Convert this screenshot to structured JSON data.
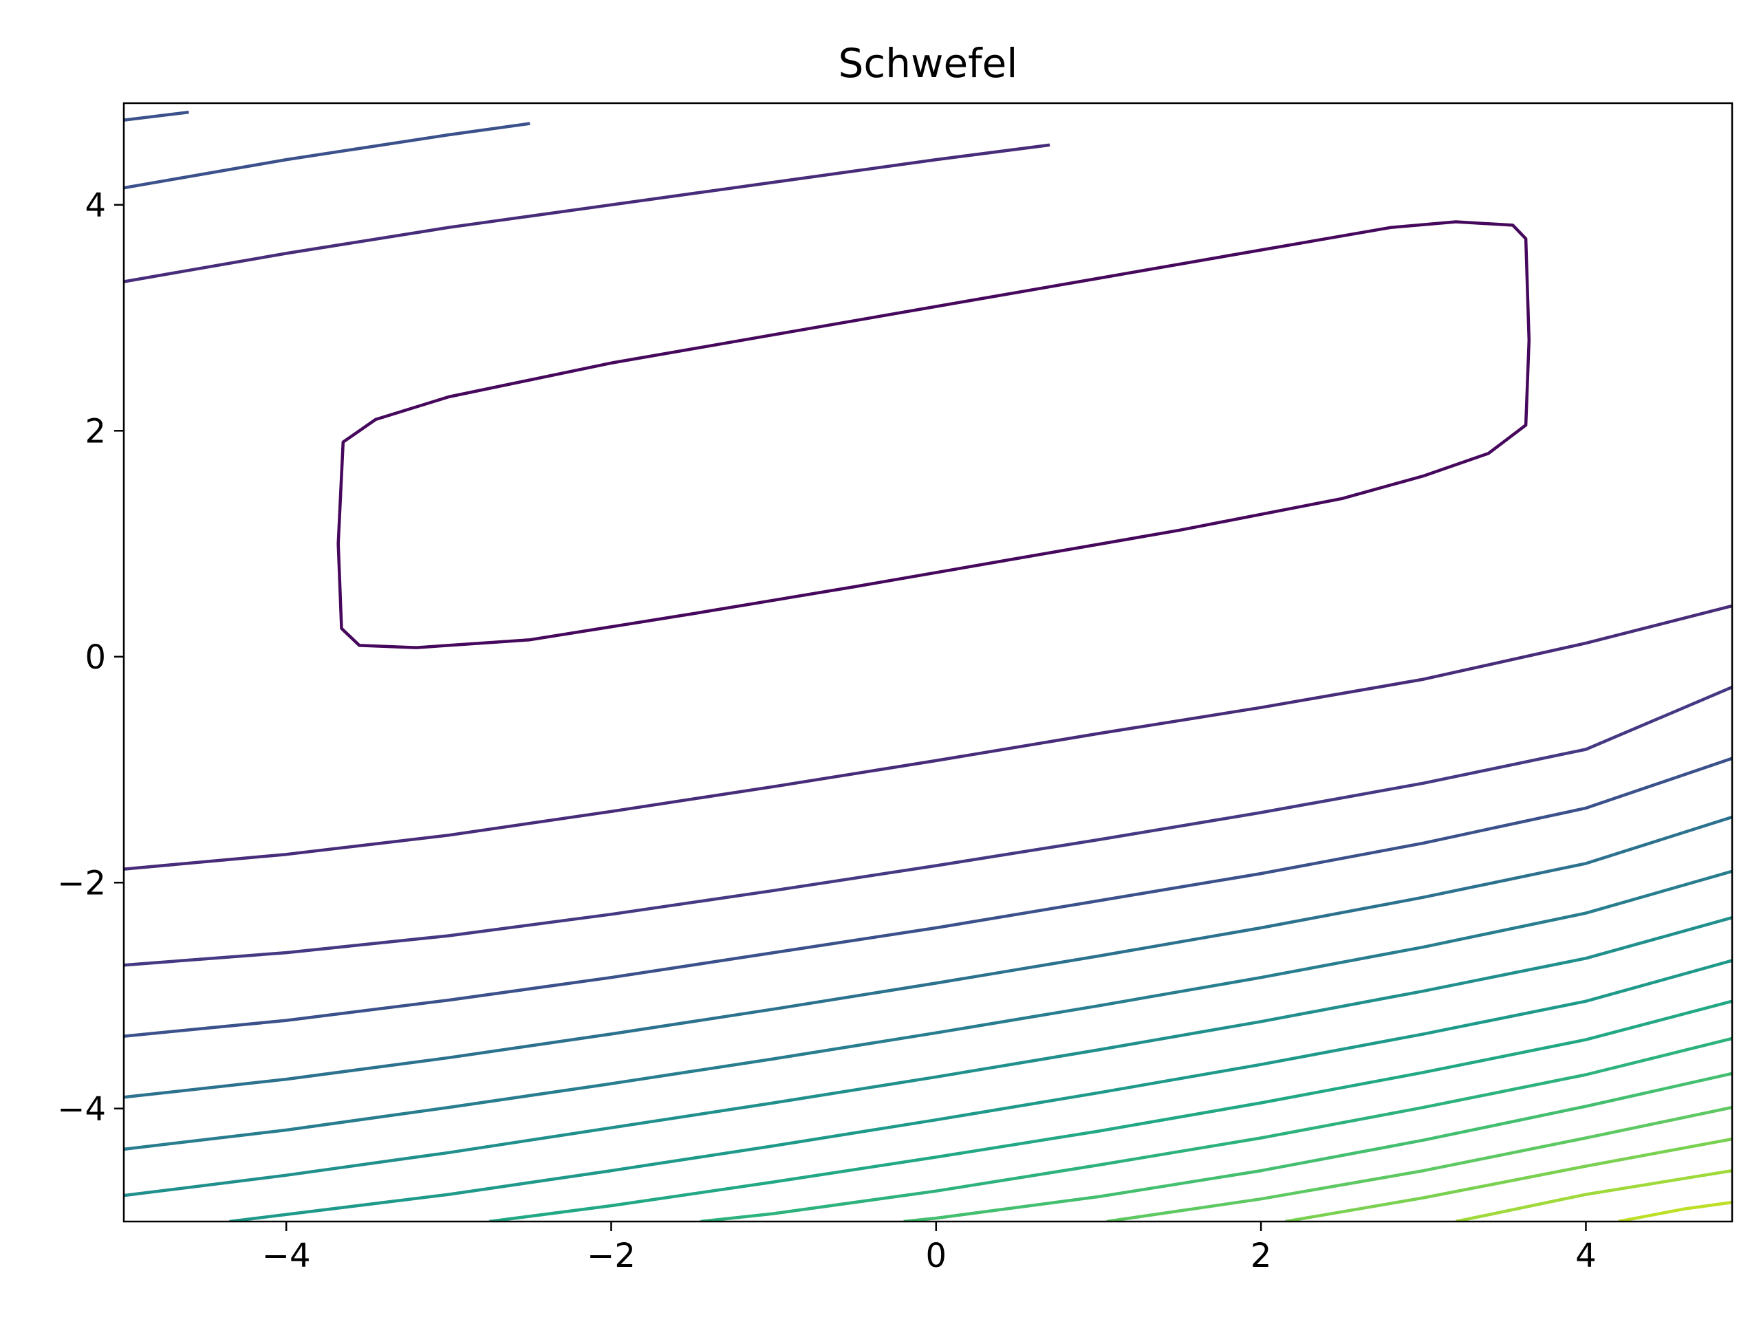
{
  "chart_data": {
    "type": "contour",
    "title": "Schwefel",
    "xlabel": "",
    "ylabel": "",
    "xlim": [
      -5,
      4.9
    ],
    "ylim": [
      -5,
      4.9
    ],
    "x_ticks": [
      -4,
      -2,
      0,
      2,
      4
    ],
    "y_ticks": [
      -4,
      -2,
      0,
      2,
      4
    ],
    "x_tick_labels": [
      "−4",
      "−2",
      "0",
      "2",
      "4"
    ],
    "y_tick_labels": [
      "−4",
      "−2",
      "0",
      "2",
      "4"
    ],
    "grid": false,
    "legend": "none",
    "colormap": "viridis",
    "contours": [
      {
        "level": 1,
        "color": "#46085c",
        "closed": true,
        "points": [
          [
            -3.55,
            0.1
          ],
          [
            -3.2,
            0.08
          ],
          [
            -2.5,
            0.15
          ],
          [
            -1.5,
            0.38
          ],
          [
            -0.5,
            0.62
          ],
          [
            0.5,
            0.87
          ],
          [
            1.5,
            1.12
          ],
          [
            2.5,
            1.4
          ],
          [
            3.0,
            1.6
          ],
          [
            3.4,
            1.8
          ],
          [
            3.63,
            2.05
          ],
          [
            3.65,
            2.8
          ],
          [
            3.63,
            3.7
          ],
          [
            3.55,
            3.82
          ],
          [
            3.2,
            3.85
          ],
          [
            2.8,
            3.8
          ],
          [
            2.0,
            3.6
          ],
          [
            1.0,
            3.35
          ],
          [
            0.0,
            3.1
          ],
          [
            -1.0,
            2.85
          ],
          [
            -2.0,
            2.6
          ],
          [
            -3.0,
            2.3
          ],
          [
            -3.45,
            2.1
          ],
          [
            -3.65,
            1.9
          ],
          [
            -3.68,
            1.0
          ],
          [
            -3.66,
            0.25
          ],
          [
            -3.55,
            0.1
          ]
        ]
      },
      {
        "level": 2,
        "color": "#472c7a",
        "closed": false,
        "points": [
          [
            -5.0,
            -1.88
          ],
          [
            -4,
            -1.75
          ],
          [
            -3,
            -1.58
          ],
          [
            -2,
            -1.37
          ],
          [
            -1,
            -1.15
          ],
          [
            0,
            -0.92
          ],
          [
            1,
            -0.68
          ],
          [
            2,
            -0.45
          ],
          [
            3,
            -0.2
          ],
          [
            4,
            0.12
          ],
          [
            4.9,
            0.45
          ]
        ]
      },
      {
        "level": 2,
        "color": "#472c7a",
        "closed": false,
        "points": [
          [
            -5.0,
            3.32
          ],
          [
            -4,
            3.57
          ],
          [
            -3,
            3.8
          ],
          [
            -2,
            4.0
          ],
          [
            -1,
            4.2
          ],
          [
            0,
            4.4
          ],
          [
            0.7,
            4.53
          ]
        ]
      },
      {
        "level": 3,
        "color": "#3b518b",
        "closed": false,
        "points": [
          [
            -5.0,
            4.15
          ],
          [
            -4,
            4.4
          ],
          [
            -3,
            4.62
          ],
          [
            -2.5,
            4.72
          ]
        ]
      },
      {
        "level": 4,
        "color": "#3b518b",
        "closed": false,
        "points": [
          [
            -5.0,
            4.75
          ],
          [
            -4.6,
            4.82
          ]
        ]
      },
      {
        "level": 3,
        "color": "#443a83",
        "closed": false,
        "points": [
          [
            -5.0,
            -2.73
          ],
          [
            -4,
            -2.62
          ],
          [
            -3,
            -2.47
          ],
          [
            -2,
            -2.28
          ],
          [
            -1,
            -2.07
          ],
          [
            0,
            -1.85
          ],
          [
            1,
            -1.62
          ],
          [
            2,
            -1.38
          ],
          [
            3,
            -1.12
          ],
          [
            4,
            -0.82
          ],
          [
            4.9,
            -0.27
          ]
        ]
      },
      {
        "level": 4,
        "color": "#3b518b",
        "closed": false,
        "points": [
          [
            -5.0,
            -3.36
          ],
          [
            -4,
            -3.22
          ],
          [
            -3,
            -3.04
          ],
          [
            -2,
            -2.84
          ],
          [
            -1,
            -2.62
          ],
          [
            0,
            -2.4
          ],
          [
            1,
            -2.16
          ],
          [
            2,
            -1.92
          ],
          [
            3,
            -1.65
          ],
          [
            4,
            -1.34
          ],
          [
            4.9,
            -0.9
          ]
        ]
      },
      {
        "level": 5,
        "color": "#2c728e",
        "closed": false,
        "points": [
          [
            -5.0,
            -3.9
          ],
          [
            -4,
            -3.74
          ],
          [
            -3,
            -3.55
          ],
          [
            -2,
            -3.34
          ],
          [
            -1,
            -3.12
          ],
          [
            0,
            -2.89
          ],
          [
            1,
            -2.65
          ],
          [
            2,
            -2.4
          ],
          [
            3,
            -2.13
          ],
          [
            4,
            -1.83
          ],
          [
            4.9,
            -1.42
          ]
        ]
      },
      {
        "level": 6,
        "color": "#287d8e",
        "closed": false,
        "points": [
          [
            -5.0,
            -4.36
          ],
          [
            -4,
            -4.19
          ],
          [
            -3,
            -3.99
          ],
          [
            -2,
            -3.78
          ],
          [
            -1,
            -3.56
          ],
          [
            0,
            -3.33
          ],
          [
            1,
            -3.09
          ],
          [
            2,
            -2.84
          ],
          [
            3,
            -2.57
          ],
          [
            4,
            -2.27
          ],
          [
            4.9,
            -1.9
          ]
        ]
      },
      {
        "level": 7,
        "color": "#21908d",
        "closed": false,
        "points": [
          [
            -5.0,
            -4.77
          ],
          [
            -4,
            -4.59
          ],
          [
            -3,
            -4.39
          ],
          [
            -2,
            -4.17
          ],
          [
            -1,
            -3.95
          ],
          [
            0,
            -3.72
          ],
          [
            1,
            -3.48
          ],
          [
            2,
            -3.23
          ],
          [
            3,
            -2.96
          ],
          [
            4,
            -2.67
          ],
          [
            4.9,
            -2.31
          ]
        ]
      },
      {
        "level": 8,
        "color": "#1f9a8a",
        "closed": false,
        "points": [
          [
            -4.35,
            -5.0
          ],
          [
            -3,
            -4.76
          ],
          [
            -2,
            -4.55
          ],
          [
            -1,
            -4.33
          ],
          [
            0,
            -4.1
          ],
          [
            1,
            -3.86
          ],
          [
            2,
            -3.61
          ],
          [
            3,
            -3.34
          ],
          [
            4,
            -3.05
          ],
          [
            4.9,
            -2.69
          ]
        ]
      },
      {
        "level": 9,
        "color": "#22a884",
        "closed": false,
        "points": [
          [
            -2.75,
            -5.0
          ],
          [
            -2,
            -4.86
          ],
          [
            -1,
            -4.65
          ],
          [
            0,
            -4.43
          ],
          [
            1,
            -4.2
          ],
          [
            2,
            -3.95
          ],
          [
            3,
            -3.68
          ],
          [
            4,
            -3.39
          ],
          [
            4.9,
            -3.05
          ]
        ]
      },
      {
        "level": 10,
        "color": "#2db27d",
        "closed": false,
        "points": [
          [
            -1.45,
            -5.0
          ],
          [
            -1,
            -4.93
          ],
          [
            0,
            -4.73
          ],
          [
            1,
            -4.5
          ],
          [
            2,
            -4.26
          ],
          [
            3,
            -3.99
          ],
          [
            4,
            -3.7
          ],
          [
            4.9,
            -3.38
          ]
        ]
      },
      {
        "level": 11,
        "color": "#44bf70",
        "closed": false,
        "points": [
          [
            -0.2,
            -5.0
          ],
          [
            0,
            -4.97
          ],
          [
            1,
            -4.78
          ],
          [
            2,
            -4.55
          ],
          [
            3,
            -4.28
          ],
          [
            4,
            -3.98
          ],
          [
            4.9,
            -3.69
          ]
        ]
      },
      {
        "level": 12,
        "color": "#5ec962",
        "closed": false,
        "points": [
          [
            1.05,
            -5.0
          ],
          [
            2,
            -4.8
          ],
          [
            3,
            -4.55
          ],
          [
            4,
            -4.26
          ],
          [
            4.9,
            -3.99
          ]
        ]
      },
      {
        "level": 13,
        "color": "#7ad151",
        "closed": false,
        "points": [
          [
            2.15,
            -5.0
          ],
          [
            3,
            -4.79
          ],
          [
            4,
            -4.51
          ],
          [
            4.9,
            -4.27
          ]
        ]
      },
      {
        "level": 14,
        "color": "#9fda3a",
        "closed": false,
        "points": [
          [
            3.2,
            -5.0
          ],
          [
            4,
            -4.76
          ],
          [
            4.9,
            -4.55
          ]
        ]
      },
      {
        "level": 15,
        "color": "#bddf26",
        "closed": false,
        "points": [
          [
            4.2,
            -5.0
          ],
          [
            4.6,
            -4.89
          ],
          [
            4.9,
            -4.83
          ]
        ]
      }
    ]
  }
}
